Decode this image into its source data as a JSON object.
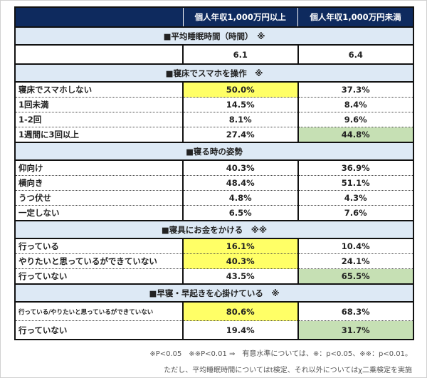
{
  "header": {
    "col1": "",
    "col2": "個人年収1,000万円以上",
    "col3": "個人年収1,000万円未満"
  },
  "sections": [
    {
      "title": "■平均睡眠時間（時間）　※",
      "rows": [
        {
          "label": "",
          "a": "6.1",
          "b": "6.4",
          "ha": "",
          "hb": ""
        }
      ]
    },
    {
      "title": "■寝床でスマホを操作　※",
      "rows": [
        {
          "label": "寝床でスマホしない",
          "a": "50.0%",
          "b": "37.3%",
          "ha": "yellow",
          "hb": ""
        },
        {
          "label": "1回未満",
          "a": "14.5%",
          "b": "8.4%",
          "ha": "",
          "hb": ""
        },
        {
          "label": "1-2回",
          "a": "8.1%",
          "b": "9.6%",
          "ha": "",
          "hb": ""
        },
        {
          "label": "1週間に3回以上",
          "a": "27.4%",
          "b": "44.8%",
          "ha": "",
          "hb": "green"
        }
      ]
    },
    {
      "title": "■寝る時の姿勢",
      "rows": [
        {
          "label": "仰向け",
          "a": "40.3%",
          "b": "36.9%",
          "ha": "",
          "hb": ""
        },
        {
          "label": "横向き",
          "a": "48.4%",
          "b": "51.1%",
          "ha": "",
          "hb": ""
        },
        {
          "label": "うつ伏せ",
          "a": "4.8%",
          "b": "4.3%",
          "ha": "",
          "hb": ""
        },
        {
          "label": "一定しない",
          "a": "6.5%",
          "b": "7.6%",
          "ha": "",
          "hb": ""
        }
      ]
    },
    {
      "title": "■寝具にお金をかける　※※",
      "rows": [
        {
          "label": "行っている",
          "a": "16.1%",
          "b": "10.4%",
          "ha": "yellow",
          "hb": ""
        },
        {
          "label": "やりたいと思っているができていない",
          "a": "40.3%",
          "b": "24.1%",
          "ha": "yellow",
          "hb": ""
        },
        {
          "label": "行っていない",
          "a": "43.5%",
          "b": "65.5%",
          "ha": "",
          "hb": "green"
        }
      ]
    },
    {
      "title": "■早寝・早起きを心掛けている　※",
      "rows": [
        {
          "label": "行っている/やりたいと思っているができていない",
          "a": "80.6%",
          "b": "68.3%",
          "ha": "yellow",
          "hb": "",
          "small": true
        },
        {
          "label": "行っていない",
          "a": "19.4%",
          "b": "31.7%",
          "ha": "",
          "hb": "green"
        }
      ]
    }
  ],
  "footnotes": [
    "※P<0.05　※※P<0.01 ⇒　有意水準については、※：p<0.05、※※：p<0.01。",
    "ただし、平均睡眠時間についてはt検定、それ以外についてはχ二乗検定を実施"
  ],
  "colors": {
    "header": "#0e2a5e",
    "section": "#dde9f5",
    "yellow": "#ffff66",
    "green": "#c6e0b4"
  }
}
